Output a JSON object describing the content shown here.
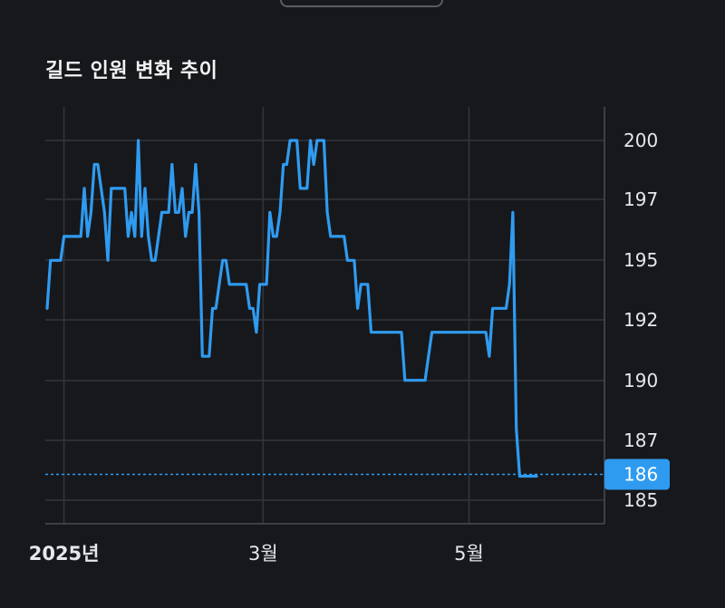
{
  "title": "길드 인원 변화 추이",
  "chart_data": {
    "type": "line",
    "title": "길드 인원 변화 추이",
    "xlabel": "",
    "ylabel": "",
    "ylim": [
      184,
      202
    ],
    "y_ticks": [
      200,
      197,
      195,
      192,
      190,
      187,
      185
    ],
    "x_ticks": [
      {
        "label": "2025년",
        "day": 5,
        "bold": true
      },
      {
        "label": "3월",
        "day": 64,
        "bold": false
      },
      {
        "label": "5월",
        "day": 125,
        "bold": false
      }
    ],
    "grid": true,
    "line_color": "#2f9bf0",
    "current_value": 186,
    "series": [
      {
        "x": [
          0,
          1,
          2,
          3,
          4,
          5,
          6,
          7,
          8,
          9,
          10,
          11,
          12,
          13,
          14,
          15,
          16,
          17,
          18,
          19,
          20,
          21,
          22,
          23,
          24,
          25,
          26,
          27,
          28,
          29,
          30,
          31,
          32,
          33,
          34,
          35,
          36,
          37,
          38,
          39,
          40,
          41,
          42,
          43,
          44,
          45,
          46,
          47,
          48,
          49,
          50,
          51,
          52,
          53,
          54,
          55,
          56,
          57,
          58,
          59,
          60,
          61,
          62,
          63,
          64,
          65,
          66,
          67,
          68,
          69,
          70,
          71,
          72,
          73,
          74,
          75,
          76,
          77,
          78,
          79,
          80,
          81,
          82,
          83,
          84,
          85,
          86,
          87,
          88,
          89,
          90,
          91,
          92,
          93,
          94,
          95,
          96,
          97,
          98,
          99,
          100,
          101,
          102,
          103,
          104,
          105,
          106,
          107,
          108,
          109,
          110,
          111,
          112,
          113,
          114,
          115,
          116,
          117,
          118,
          119,
          120,
          121,
          122,
          123,
          124,
          125,
          126,
          127,
          128,
          129,
          130,
          131,
          132,
          133,
          134,
          135,
          136,
          137,
          138,
          139,
          140,
          141,
          142,
          143,
          144,
          145
        ],
        "values": [
          193,
          195,
          195,
          195,
          195,
          196,
          196,
          196,
          196,
          196,
          196,
          198,
          196,
          197,
          199,
          199,
          198,
          197,
          195,
          198,
          198,
          198,
          198,
          198,
          196,
          197,
          196,
          200,
          196,
          198,
          196,
          195,
          195,
          196,
          197,
          197,
          197,
          199,
          197,
          197,
          198,
          196,
          197,
          197,
          199,
          197,
          191,
          191,
          191,
          193,
          193,
          194,
          195,
          195,
          194,
          194,
          194,
          194,
          194,
          194,
          193,
          193,
          192,
          194,
          194,
          194,
          197,
          196,
          196,
          197,
          199,
          199,
          200,
          200,
          200,
          198,
          198,
          198,
          200,
          199,
          200,
          200,
          200,
          197,
          196,
          196,
          196,
          196,
          196,
          195,
          195,
          195,
          193,
          194,
          194,
          194,
          192,
          192,
          192,
          192,
          192,
          192,
          192,
          192,
          192,
          192,
          190,
          190,
          190,
          190,
          190,
          190,
          190,
          191,
          192,
          192,
          192,
          192,
          192,
          192,
          192,
          192,
          192,
          192,
          192,
          192,
          192,
          192,
          192,
          192,
          192,
          191,
          193,
          193,
          193,
          193,
          193,
          194,
          197,
          188,
          186,
          186,
          186,
          186,
          186,
          186
        ]
      }
    ]
  }
}
